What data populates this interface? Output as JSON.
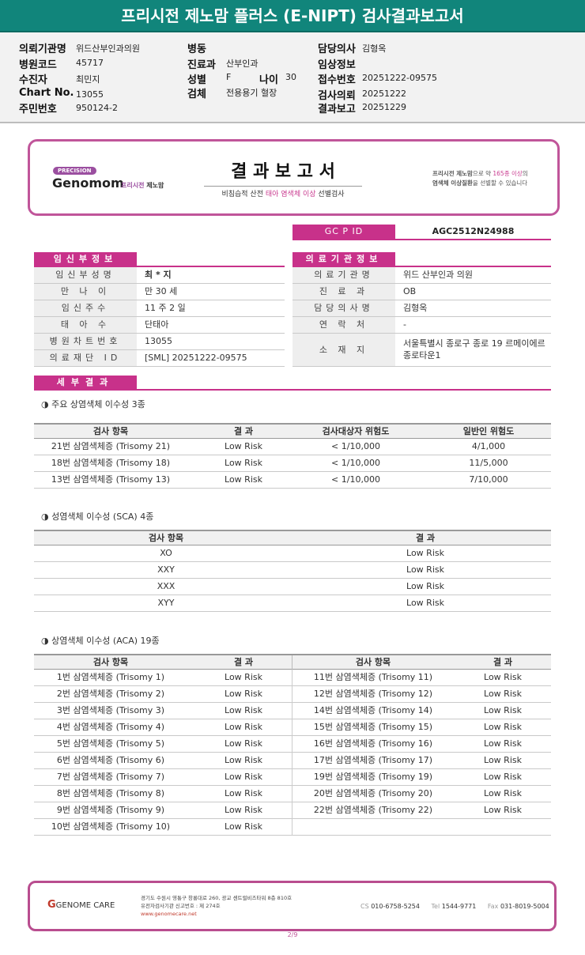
{
  "title": "프리시전 제노맘 플러스 (E-NIPT) 검사결과보고서",
  "header_info": {
    "institution_label": "의뢰기관명",
    "institution": "위드산부인과의원",
    "hospital_code_label": "병원코드",
    "hospital_code": "45717",
    "patient_label": "수진자",
    "patient": "최민지",
    "chart_label": "Chart No.",
    "chart": "13055",
    "rrn_label": "주민번호",
    "rrn": "950124-2",
    "ward_label": "병동",
    "dept_label": "진료과",
    "dept": "산부인과",
    "sex_label": "성별",
    "sex": "F",
    "age_label": "나이",
    "age": "30",
    "specimen_label": "검체",
    "specimen": "전용용기 혈장",
    "doctor_label": "담당의사",
    "doctor": "김형옥",
    "clinical_label": "임상정보",
    "receipt_label": "접수번호",
    "receipt": "20251222-09575",
    "request_label": "검사의뢰",
    "request": "20251222",
    "report_label": "결과보고",
    "report": "20251229"
  },
  "report_card": {
    "logo_badge": "PRECISION",
    "logo_name": "Genomom",
    "logo_sub1": "프리시전",
    "logo_sub2": "제노맘",
    "heading": "결 과 보 고 서",
    "subtitle_a": "비침습적 산전 ",
    "subtitle_b": "태아 염색체 이상",
    "subtitle_c": " 선별검사",
    "right_line1_a": "프리시전 제노맘",
    "right_line1_b": "으로 약 ",
    "right_line1_c": "165종 이상",
    "right_line1_d": "의",
    "right_line2_a": "염색체 이상질환",
    "right_line2_b": "을 선별할 수 있습니다",
    "accent": "#c0559a"
  },
  "gcpid": {
    "label": "GC P ID",
    "value": "AGC2512N24988"
  },
  "pregnant_info": {
    "header": "임신부정보",
    "rows": [
      {
        "label": "임신부성명",
        "value": "최 * 지"
      },
      {
        "label": "만 나 이",
        "value": "만 30 세"
      },
      {
        "label": "임신주수",
        "value": "11 주 2 일"
      },
      {
        "label": "태 아 수",
        "value": "단태아"
      },
      {
        "label": "병원차트번호",
        "value": "13055"
      },
      {
        "label": "의료재단 ID",
        "value": "[SML] 20251222-09575"
      }
    ]
  },
  "institution_info": {
    "header": "의료기관정보",
    "rows": [
      {
        "label": "의료기관명",
        "value": "위드 산부인과 의원"
      },
      {
        "label": "진 료 과",
        "value": "OB"
      },
      {
        "label": "담당의사명",
        "value": "김형옥"
      },
      {
        "label": "연 락 처",
        "value": "-"
      },
      {
        "label": "소 재 지",
        "value": "서울특별시 종로구 종로 19 르메이에르 종로타운1"
      }
    ]
  },
  "detail_header": "세부결과",
  "major": {
    "caption": "◑ 주요 상염색체 이수성 3종",
    "headers": [
      "검사 항목",
      "결 과",
      "검사대상자 위험도",
      "일반인 위험도"
    ],
    "rows": [
      [
        "21번 삼염색체증 (Trisomy 21)",
        "Low Risk",
        "< 1/10,000",
        "4/1,000"
      ],
      [
        "18번 삼염색체증 (Trisomy 18)",
        "Low Risk",
        "< 1/10,000",
        "11/5,000"
      ],
      [
        "13번 삼염색체증 (Trisomy 13)",
        "Low Risk",
        "< 1/10,000",
        "7/10,000"
      ]
    ]
  },
  "sca": {
    "caption": "◑ 성염색체 이수성 (SCA) 4종",
    "headers": [
      "검사 항목",
      "결 과"
    ],
    "rows": [
      [
        "XO",
        "Low Risk"
      ],
      [
        "XXY",
        "Low Risk"
      ],
      [
        "XXX",
        "Low Risk"
      ],
      [
        "XYY",
        "Low Risk"
      ]
    ]
  },
  "aca": {
    "caption": "◑ 상염색체 이수성 (ACA) 19종",
    "headers": [
      "검사 항목",
      "결 과",
      "검사 항목",
      "결 과"
    ],
    "rows": [
      [
        "1번 삼염색체증 (Trisomy 1)",
        "Low Risk",
        "11번 삼염색체증 (Trisomy 11)",
        "Low Risk"
      ],
      [
        "2번 삼염색체증 (Trisomy 2)",
        "Low Risk",
        "12번 삼염색체증 (Trisomy 12)",
        "Low Risk"
      ],
      [
        "3번 삼염색체증 (Trisomy 3)",
        "Low Risk",
        "14번 삼염색체증 (Trisomy 14)",
        "Low Risk"
      ],
      [
        "4번 삼염색체증 (Trisomy 4)",
        "Low Risk",
        "15번 삼염색체증 (Trisomy 15)",
        "Low Risk"
      ],
      [
        "5번 삼염색체증 (Trisomy 5)",
        "Low Risk",
        "16번 삼염색체증 (Trisomy 16)",
        "Low Risk"
      ],
      [
        "6번 삼염색체증 (Trisomy 6)",
        "Low Risk",
        "17번 삼염색체증 (Trisomy 17)",
        "Low Risk"
      ],
      [
        "7번 삼염색체증 (Trisomy 7)",
        "Low Risk",
        "19번 삼염색체증 (Trisomy 19)",
        "Low Risk"
      ],
      [
        "8번 삼염색체증 (Trisomy 8)",
        "Low Risk",
        "20번 삼염색체증 (Trisomy 20)",
        "Low Risk"
      ],
      [
        "9번 삼염색체증 (Trisomy 9)",
        "Low Risk",
        "22번 삼염색체증 (Trisomy 22)",
        "Low Risk"
      ],
      [
        "10번 삼염색체증 (Trisomy 10)",
        "Low Risk",
        "",
        ""
      ]
    ]
  },
  "footer": {
    "logo": "GENOME CARE",
    "address": "경기도 수원시 영통구 창룡대로 260, 광교 센트럴비즈타워 8층 810호",
    "license": "유전자검사기관 신고번호 : 제 274호",
    "website": "www.genomecare.net",
    "cs_label": "CS",
    "cs": "010-6758-5254",
    "tel_label": "Tel",
    "tel": "1544-9771",
    "fax_label": "Fax",
    "fax": "031-8019-5004"
  },
  "page": "2/9"
}
